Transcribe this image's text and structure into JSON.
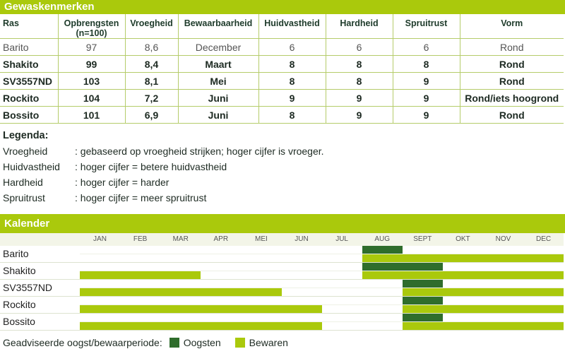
{
  "table_title": "Gewaskenmerken",
  "columns": [
    "Ras",
    "Opbrengsten (n=100)",
    "Vroegheid",
    "Bewaarbaarheid",
    "Huidvastheid",
    "Hardheid",
    "Spruitrust",
    "Vorm"
  ],
  "rows": [
    [
      "Barito",
      "97",
      "8,6",
      "December",
      "6",
      "6",
      "6",
      "Rond"
    ],
    [
      "Shakito",
      "99",
      "8,4",
      "Maart",
      "8",
      "8",
      "8",
      "Rond"
    ],
    [
      "SV3557ND",
      "103",
      "8,1",
      "Mei",
      "8",
      "8",
      "9",
      "Rond"
    ],
    [
      "Rockito",
      "104",
      "7,2",
      "Juni",
      "9",
      "9",
      "9",
      "Rond/iets hoogrond"
    ],
    [
      "Bossito",
      "101",
      "6,9",
      "Juni",
      "8",
      "9",
      "9",
      "Rond"
    ]
  ],
  "legend": {
    "title": "Legenda:",
    "items": [
      {
        "key": "Vroegheid",
        "text": ": gebaseerd op vroegheid strijken; hoger cijfer is vroeger."
      },
      {
        "key": "Huidvastheid",
        "text": ": hoger cijfer = betere huidvastheid"
      },
      {
        "key": "Hardheid",
        "text": ": hoger cijfer = harder"
      },
      {
        "key": "Spruitrust",
        "text": ": hoger cijfer = meer spruitrust"
      }
    ]
  },
  "calendar": {
    "title": "Kalender",
    "months": [
      "JAN",
      "FEB",
      "MAR",
      "APR",
      "MEI",
      "JUN",
      "JUL",
      "AUG",
      "SEPT",
      "OKT",
      "NOV",
      "DEC"
    ],
    "colors": {
      "oogsten": "#2f6d2c",
      "bewaren": "#aac90c"
    },
    "rows": [
      {
        "name": "Barito",
        "oogsten": [
          [
            7,
            8
          ]
        ],
        "bewaren": [
          [
            7,
            12
          ]
        ]
      },
      {
        "name": "Shakito",
        "oogsten": [
          [
            7,
            9
          ]
        ],
        "bewaren": [
          [
            0,
            3
          ],
          [
            7,
            12
          ]
        ]
      },
      {
        "name": "SV3557ND",
        "oogsten": [
          [
            8,
            9
          ]
        ],
        "bewaren": [
          [
            0,
            5
          ],
          [
            8,
            12
          ]
        ]
      },
      {
        "name": "Rockito",
        "oogsten": [
          [
            8,
            9
          ]
        ],
        "bewaren": [
          [
            0,
            6
          ],
          [
            8,
            12
          ]
        ]
      },
      {
        "name": "Bossito",
        "oogsten": [
          [
            8,
            9
          ]
        ],
        "bewaren": [
          [
            0,
            6
          ],
          [
            8,
            12
          ]
        ]
      }
    ],
    "footer_label": "Geadviseerde oogst/bewaarperiode:",
    "footer_oogsten": "Oogsten",
    "footer_bewaren": "Bewaren"
  }
}
